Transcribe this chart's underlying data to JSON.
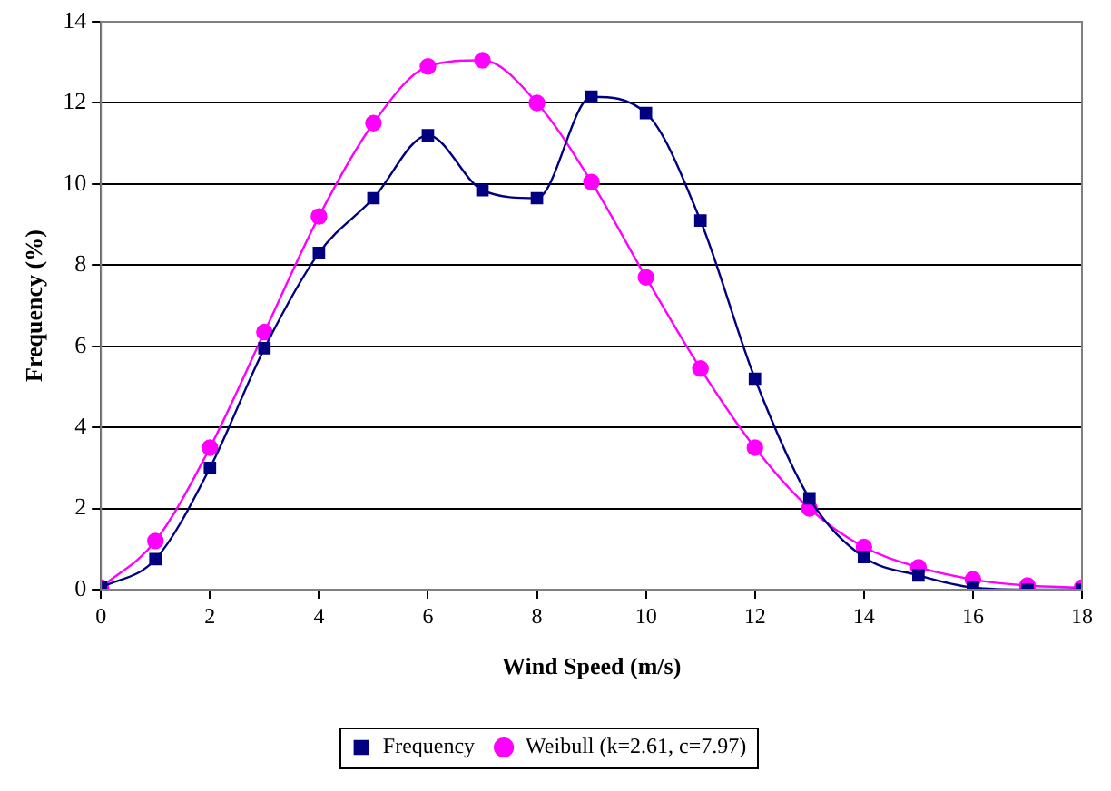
{
  "chart_data": {
    "type": "line",
    "xlabel": "Wind Speed (m/s)",
    "ylabel": "Frequency (%)",
    "x": [
      0,
      1,
      2,
      3,
      4,
      5,
      6,
      7,
      8,
      9,
      10,
      11,
      12,
      13,
      14,
      15,
      16,
      17,
      18
    ],
    "series": [
      {
        "name": "Frequency",
        "color": "#000080",
        "marker": "square",
        "values": [
          0.05,
          0.75,
          3.0,
          5.95,
          8.3,
          9.65,
          11.2,
          9.85,
          9.65,
          12.15,
          11.75,
          9.1,
          5.2,
          2.25,
          0.8,
          0.35,
          0.05,
          0,
          0
        ]
      },
      {
        "name": "Weibull (k=2.61, c=7.97)",
        "color": "#ff00ff",
        "marker": "circle",
        "values": [
          0.05,
          1.2,
          3.5,
          6.35,
          9.2,
          11.5,
          12.9,
          13.05,
          12.0,
          10.05,
          7.7,
          5.45,
          3.5,
          2.0,
          1.05,
          0.55,
          0.25,
          0.1,
          0.05
        ]
      }
    ],
    "xlim": [
      0,
      18
    ],
    "xticks": [
      0,
      2,
      4,
      6,
      8,
      10,
      12,
      14,
      16,
      18
    ],
    "ylim": [
      0,
      14
    ],
    "yticks": [
      0,
      2,
      4,
      6,
      8,
      10,
      12,
      14
    ],
    "grid": "y",
    "legend": "bottom"
  }
}
